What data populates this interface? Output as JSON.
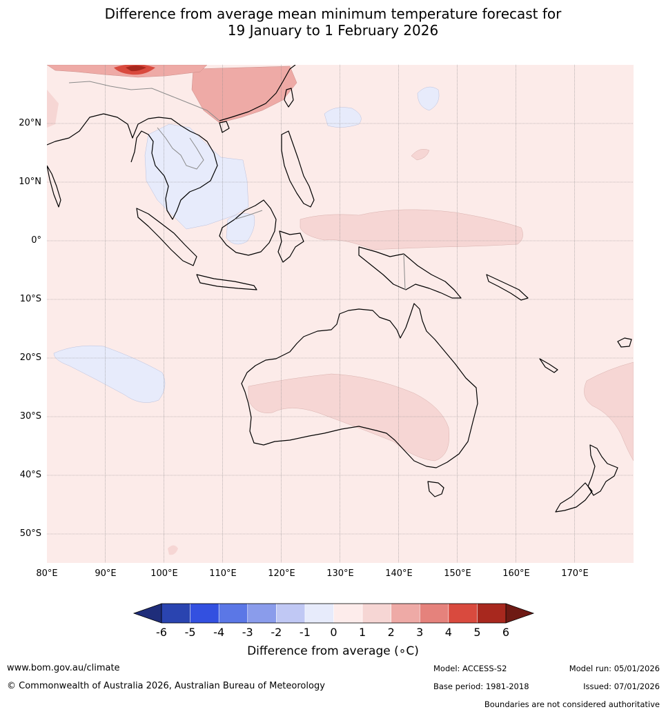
{
  "title": {
    "line1": "Difference from average mean minimum temperature forecast for",
    "line2": "19 January to 1 February 2026"
  },
  "lat_labels": [
    "20°N",
    "10°N",
    "0°",
    "10°S",
    "20°S",
    "30°S",
    "40°S",
    "50°S"
  ],
  "lon_labels": [
    "80°E",
    "90°E",
    "100°E",
    "110°E",
    "120°E",
    "130°E",
    "140°E",
    "150°E",
    "160°E",
    "170°E"
  ],
  "map_extent": {
    "lon_min": 80,
    "lon_max": 180,
    "lat_min": -55,
    "lat_max": 30
  },
  "colorbar": {
    "title": "Difference from average (∘C)",
    "ticks": [
      "-6",
      "-5",
      "-4",
      "-3",
      "-2",
      "-1",
      "0",
      "1",
      "2",
      "3",
      "4",
      "5",
      "6"
    ],
    "colors": [
      "#1f2d7a",
      "#2a44b0",
      "#3350e0",
      "#5b77e6",
      "#8a9ceb",
      "#c0c8f4",
      "#e7ebfb",
      "#fdeceb",
      "#f6d6d4",
      "#eeaaa6",
      "#e5827c",
      "#d94a3e",
      "#a8281e",
      "#6e1a14"
    ]
  },
  "legend_map_colors": {
    "background": "#fcebe9",
    "warm_1": "#f6d6d4",
    "warm_2": "#eeaaa6",
    "warm_3": "#e5827c",
    "warm_4": "#d94a3e",
    "warm_5": "#a8281e",
    "cool_1": "#e7ebfb"
  },
  "footer": {
    "website": "www.bom.gov.au/climate",
    "copyright": "© Commonwealth of Australia 2026, Australian Bureau of Meteorology",
    "model": "Model: ACCESS-S2",
    "base_period": "Base period: 1981-2018",
    "model_run": "Model run: 05/01/2026",
    "issued": "Issued: 07/01/2026",
    "disclaimer": "Boundaries are not considered authoritative"
  }
}
